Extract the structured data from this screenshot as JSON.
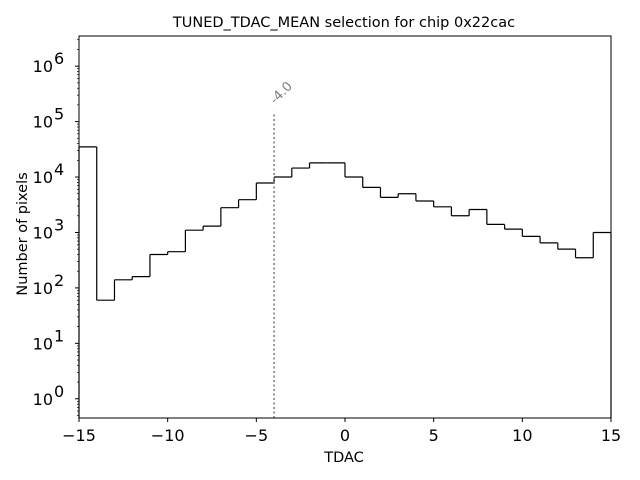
{
  "chart_data": {
    "type": "histogram-step",
    "title": "TUNED_TDAC_MEAN selection for chip 0x22cac",
    "xlabel": "TDAC",
    "ylabel": "Number of pixels",
    "xlim": [
      -15,
      15
    ],
    "ylog": true,
    "ylim": [
      0.45,
      3500000
    ],
    "xticks": [
      {
        "value": -15,
        "label": "−15"
      },
      {
        "value": -10,
        "label": "−10"
      },
      {
        "value": -5,
        "label": "−5"
      },
      {
        "value": 0,
        "label": "0"
      },
      {
        "value": 5,
        "label": "5"
      },
      {
        "value": 10,
        "label": "10"
      },
      {
        "value": 15,
        "label": "15"
      }
    ],
    "yticks": [
      {
        "value": 1,
        "base": "10",
        "exp": "0"
      },
      {
        "value": 10,
        "base": "10",
        "exp": "1"
      },
      {
        "value": 100,
        "base": "10",
        "exp": "2"
      },
      {
        "value": 1000,
        "base": "10",
        "exp": "3"
      },
      {
        "value": 10000,
        "base": "10",
        "exp": "4"
      },
      {
        "value": 100000,
        "base": "10",
        "exp": "5"
      },
      {
        "value": 1000000,
        "base": "10",
        "exp": "6"
      }
    ],
    "bin_edges": [
      -15,
      -14,
      -13,
      -12,
      -11,
      -10,
      -9,
      -8,
      -7,
      -6,
      -5,
      -4,
      -3,
      -2,
      -1,
      0,
      1,
      2,
      3,
      4,
      5,
      6,
      7,
      8,
      9,
      10,
      11,
      12,
      13,
      14,
      15
    ],
    "counts": [
      35000,
      60,
      140,
      160,
      400,
      450,
      1100,
      1300,
      2800,
      3900,
      7800,
      10000,
      14500,
      18000,
      18000,
      10000,
      6500,
      4300,
      5000,
      3700,
      2900,
      2000,
      2600,
      1400,
      1150,
      850,
      650,
      500,
      350,
      1000
    ],
    "vline": {
      "x": -4.0,
      "ymax": 150000,
      "label": "-4.0",
      "color": "#808080"
    },
    "grid": false,
    "colors": {
      "line": "#000000",
      "annotation": "#808080"
    }
  }
}
